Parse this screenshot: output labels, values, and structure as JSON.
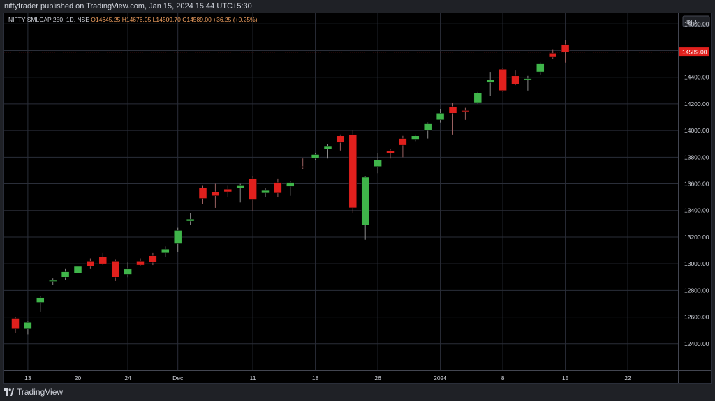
{
  "header": {
    "published": "niftytrader published on TradingView.com, Jan 15, 2024 15:44 UTC+5:30"
  },
  "footer": {
    "brand": "TradingView",
    "logo_icon": "tradingview-logo-icon"
  },
  "colors": {
    "up": "#3fb54a",
    "down": "#e1201d",
    "wick_up": "#8a8a8a",
    "wick_down": "#9a6060",
    "grid": "#2a2e39",
    "axis_text": "#d1d4dc",
    "last_price_bg": "#e1201d"
  },
  "chart_data": {
    "type": "candlestick",
    "symbol": "NIFTY SMLCAP 250, 1D, NSE",
    "ohlc_header": {
      "open": "O14645.25",
      "high": "H14676.05",
      "low": "L14509.70",
      "close": "C14589.00",
      "change": "+36.25 (+0.25%)"
    },
    "currency": "INR",
    "last_price_label": "14589.00",
    "last_price": 14589,
    "ylim": [
      12200,
      14880
    ],
    "y_ticks": [
      12400,
      12600,
      12800,
      13000,
      13200,
      13400,
      13600,
      13800,
      14000,
      14200,
      14400,
      14600,
      14800
    ],
    "y_tick_labels": [
      "12400.00",
      "12600.00",
      "12800.00",
      "13000.00",
      "13200.00",
      "13400.00",
      "13600.00",
      "13800.00",
      "14000.00",
      "14200.00",
      "14400.00",
      "14600.00",
      "14800.00"
    ],
    "x_tick_labels": [
      {
        "index": 1,
        "label": "13"
      },
      {
        "index": 5,
        "label": "20"
      },
      {
        "index": 9,
        "label": "24"
      },
      {
        "index": 13,
        "label": "Dec"
      },
      {
        "index": 19,
        "label": "11"
      },
      {
        "index": 24,
        "label": "18"
      },
      {
        "index": 29,
        "label": "26"
      },
      {
        "index": 34,
        "label": "2024"
      },
      {
        "index": 39,
        "label": "8"
      },
      {
        "index": 44,
        "label": "15"
      },
      {
        "index": 49,
        "label": "22"
      }
    ],
    "reference_line": {
      "value": 12585,
      "from_index": -1,
      "to_index": 5
    },
    "candles": [
      {
        "o": 12590,
        "h": 12600,
        "l": 12480,
        "c": 12510
      },
      {
        "o": 12510,
        "h": 12565,
        "l": 12470,
        "c": 12560
      },
      {
        "o": 12710,
        "h": 12760,
        "l": 12640,
        "c": 12745
      },
      {
        "o": 12870,
        "h": 12890,
        "l": 12840,
        "c": 12875
      },
      {
        "o": 12900,
        "h": 12960,
        "l": 12880,
        "c": 12940
      },
      {
        "o": 12930,
        "h": 13010,
        "l": 12900,
        "c": 12980
      },
      {
        "o": 13020,
        "h": 13040,
        "l": 12960,
        "c": 12980
      },
      {
        "o": 13050,
        "h": 13080,
        "l": 12990,
        "c": 13000
      },
      {
        "o": 13020,
        "h": 13030,
        "l": 12870,
        "c": 12900
      },
      {
        "o": 12920,
        "h": 13010,
        "l": 12900,
        "c": 12960
      },
      {
        "o": 13020,
        "h": 13040,
        "l": 12980,
        "c": 12990
      },
      {
        "o": 13060,
        "h": 13080,
        "l": 12990,
        "c": 13010
      },
      {
        "o": 13080,
        "h": 13130,
        "l": 13050,
        "c": 13110
      },
      {
        "o": 13150,
        "h": 13270,
        "l": 13090,
        "c": 13250
      },
      {
        "o": 13320,
        "h": 13380,
        "l": 13290,
        "c": 13335
      },
      {
        "o": 13570,
        "h": 13590,
        "l": 13450,
        "c": 13490
      },
      {
        "o": 13540,
        "h": 13600,
        "l": 13420,
        "c": 13510
      },
      {
        "o": 13560,
        "h": 13590,
        "l": 13500,
        "c": 13540
      },
      {
        "o": 13570,
        "h": 13600,
        "l": 13460,
        "c": 13590
      },
      {
        "o": 13640,
        "h": 13660,
        "l": 13400,
        "c": 13480
      },
      {
        "o": 13530,
        "h": 13570,
        "l": 13500,
        "c": 13550
      },
      {
        "o": 13610,
        "h": 13640,
        "l": 13500,
        "c": 13530
      },
      {
        "o": 13580,
        "h": 13620,
        "l": 13510,
        "c": 13610
      },
      {
        "o": 13730,
        "h": 13790,
        "l": 13710,
        "c": 13725
      },
      {
        "o": 13790,
        "h": 13830,
        "l": 13780,
        "c": 13820
      },
      {
        "o": 13860,
        "h": 13900,
        "l": 13790,
        "c": 13880
      },
      {
        "o": 13960,
        "h": 13970,
        "l": 13850,
        "c": 13910
      },
      {
        "o": 13970,
        "h": 14000,
        "l": 13380,
        "c": 13420
      },
      {
        "o": 13290,
        "h": 13660,
        "l": 13180,
        "c": 13650
      },
      {
        "o": 13730,
        "h": 13830,
        "l": 13680,
        "c": 13780
      },
      {
        "o": 13850,
        "h": 13860,
        "l": 13790,
        "c": 13830
      },
      {
        "o": 13940,
        "h": 13960,
        "l": 13800,
        "c": 13890
      },
      {
        "o": 13930,
        "h": 13970,
        "l": 13920,
        "c": 13960
      },
      {
        "o": 14000,
        "h": 14060,
        "l": 13940,
        "c": 14050
      },
      {
        "o": 14080,
        "h": 14160,
        "l": 14060,
        "c": 14130
      },
      {
        "o": 14180,
        "h": 14210,
        "l": 13970,
        "c": 14130
      },
      {
        "o": 14150,
        "h": 14170,
        "l": 14080,
        "c": 14145
      },
      {
        "o": 14210,
        "h": 14290,
        "l": 14200,
        "c": 14280
      },
      {
        "o": 14360,
        "h": 14440,
        "l": 14260,
        "c": 14380
      },
      {
        "o": 14460,
        "h": 14470,
        "l": 14290,
        "c": 14300
      },
      {
        "o": 14410,
        "h": 14450,
        "l": 14340,
        "c": 14350
      },
      {
        "o": 14385,
        "h": 14410,
        "l": 14300,
        "c": 14390
      },
      {
        "o": 14440,
        "h": 14510,
        "l": 14420,
        "c": 14500
      },
      {
        "o": 14580,
        "h": 14610,
        "l": 14540,
        "c": 14550
      },
      {
        "o": 14645.25,
        "h": 14676.05,
        "l": 14509.7,
        "c": 14589
      }
    ]
  }
}
